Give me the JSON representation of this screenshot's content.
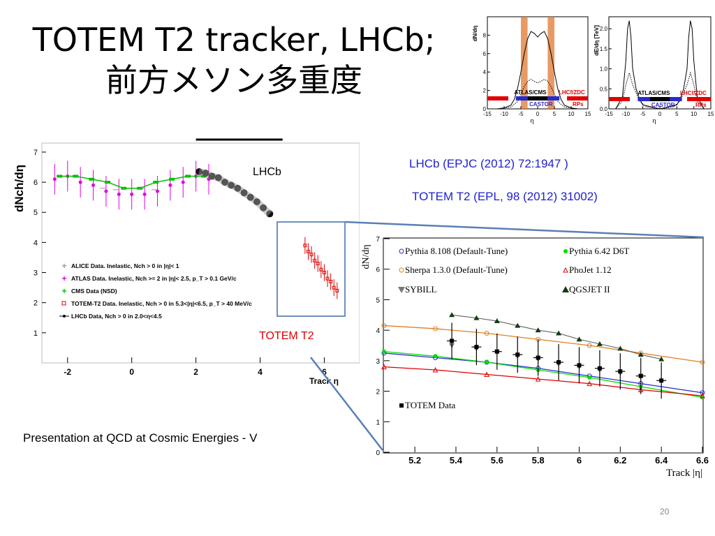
{
  "slide": {
    "title_line1": "TOTEM T2 tracker, LHCb;",
    "title_line2": "前方メソン多重度",
    "ref_lhcb": "LHCb (EPJC (2012) 72:1947 )",
    "ref_totem": "TOTEM T2 (EPL, 98 (2012) 31002)",
    "label_lhcb": "LHCb",
    "label_totem": "TOTEM T2",
    "footer": "Presentation at QCD at Cosmic Energies - V",
    "page_number": "20",
    "colors": {
      "ref": "#1f1fcf",
      "totem_label": "#e00000",
      "zoom_box": "#6f8fbf"
    }
  },
  "chart_data": [
    {
      "id": "detector-coverage-dNdeta",
      "type": "line",
      "ylabel": "dN/dη",
      "xlabel": "η",
      "xlim": [
        -15,
        15
      ],
      "ylim": [
        0,
        10
      ],
      "xticks": [
        "-15",
        "-10",
        "-5",
        "0",
        "5",
        "10",
        "15"
      ],
      "yticks": [
        "0",
        "2",
        "4",
        "6",
        "8"
      ],
      "bands": [
        "ATLAS/CMS",
        "CASTOR",
        "LHCf/ZDC",
        "RPs"
      ],
      "band_colors": {
        "atlas_cms": "#000000",
        "castor": "#2a2ad0",
        "lhcf_rps": "#e00000"
      },
      "highlight_eta_ranges": [
        [
          -5,
          -3
        ],
        [
          3,
          5
        ]
      ],
      "solid": {
        "x": [
          -12,
          -10,
          -8,
          -7,
          -6,
          -5,
          -4,
          -3,
          -2,
          -1,
          0,
          1,
          2,
          3,
          4,
          5,
          6,
          7,
          8,
          10,
          12
        ],
        "y": [
          0,
          0.1,
          0.4,
          1.0,
          2.2,
          4.0,
          6.0,
          7.6,
          8.4,
          8.2,
          7.8,
          8.2,
          8.4,
          7.6,
          6.0,
          4.0,
          2.2,
          1.0,
          0.4,
          0.1,
          0
        ]
      },
      "dotted": {
        "x": [
          -12,
          -8,
          -6,
          -5,
          -4,
          -3,
          -2,
          -1,
          0,
          1,
          2,
          3,
          4,
          5,
          6,
          8,
          12
        ],
        "y": [
          0,
          0.2,
          0.8,
          1.6,
          2.4,
          3.0,
          3.2,
          3.0,
          2.8,
          3.0,
          3.2,
          3.0,
          2.4,
          1.6,
          0.8,
          0.2,
          0
        ]
      }
    },
    {
      "id": "detector-coverage-dEdeta",
      "type": "line",
      "ylabel": "dE/dη [TeV]",
      "xlabel": "η",
      "xlim": [
        -15,
        15
      ],
      "ylim": [
        0,
        2.3
      ],
      "xticks": [
        "-15",
        "-10",
        "-5",
        "0",
        "5",
        "10",
        "15"
      ],
      "yticks": [
        "0.0",
        "0.5",
        "1.0",
        "1.5",
        "2.0"
      ],
      "bands": [
        "ATLAS/CMS",
        "CASTOR",
        "LHCf/ZDC",
        "RPs"
      ],
      "solid": {
        "x": [
          -13,
          -11,
          -10,
          -9.5,
          -9,
          -8.5,
          -8,
          -7,
          -6,
          -5,
          0,
          5,
          6,
          7,
          8,
          8.5,
          9,
          9.5,
          10,
          11,
          13
        ],
        "y": [
          0,
          0.3,
          1.2,
          2.0,
          2.2,
          1.8,
          1.0,
          0.5,
          0.25,
          0.1,
          0,
          0.1,
          0.25,
          0.5,
          1.0,
          1.8,
          2.2,
          2.0,
          1.2,
          0.3,
          0
        ]
      },
      "dotted": {
        "x": [
          -13,
          -11,
          -10,
          -9,
          -8,
          -6,
          -4,
          0,
          4,
          6,
          8,
          9,
          10,
          11,
          13
        ],
        "y": [
          0,
          0.2,
          0.6,
          0.9,
          0.6,
          0.2,
          0.05,
          0,
          0.05,
          0.2,
          0.6,
          0.9,
          0.6,
          0.2,
          0
        ]
      }
    },
    {
      "id": "multiplicity-overview",
      "type": "scatter",
      "ylabel": "dNch/dη",
      "xlabel": "Track η",
      "xlim": [
        -2.8,
        7.1
      ],
      "ylim": [
        0,
        7.3
      ],
      "xticks": [
        "-2",
        "0",
        "2",
        "4",
        "6"
      ],
      "yticks": [
        "1",
        "2",
        "3",
        "4",
        "5",
        "6",
        "7"
      ],
      "legend": [
        {
          "label": "ALICE Data. Inelastic, Nch > 0 in |η|< 1",
          "color": "#999999",
          "marker": "cross"
        },
        {
          "label": "ATLAS Data. Inelastic, Nch >= 2 in  |η|< 2.5, p_T > 0.1 GeV/c",
          "color": "#e000e0",
          "marker": "star"
        },
        {
          "label": "CMS Data (NSD)",
          "color": "#00c000",
          "marker": "cross"
        },
        {
          "label": "TOTEM-T2 Data. Inelastic, Nch > 0 in 5.3<|η|<6.5, p_T > 40 MeV/c",
          "color": "#e00000",
          "marker": "open-square"
        },
        {
          "label": "LHCb Data, Nch > 0 in 2.0<η<4.5",
          "color": "#000000",
          "marker": "dot"
        }
      ],
      "series": [
        {
          "name": "ATLAS Data",
          "x": [
            -2.4,
            -2.0,
            -1.6,
            -1.2,
            -0.8,
            -0.4,
            0.0,
            0.4,
            0.8,
            1.2,
            1.6,
            2.0,
            2.4
          ],
          "y": [
            6.1,
            6.2,
            6.0,
            5.9,
            5.7,
            5.6,
            5.6,
            5.6,
            5.7,
            5.9,
            6.0,
            6.2,
            6.1
          ]
        },
        {
          "name": "CMS Data (NSD)",
          "x": [
            -2.25,
            -1.75,
            -1.25,
            -0.75,
            -0.25,
            0.25,
            0.75,
            1.25,
            1.75,
            2.25
          ],
          "y": [
            6.2,
            6.2,
            6.1,
            6.0,
            5.8,
            5.8,
            6.0,
            6.1,
            6.2,
            6.2
          ]
        },
        {
          "name": "ALICE Data",
          "x": [
            -0.9,
            -0.5,
            -0.1,
            0.3,
            0.7
          ],
          "y": [
            5.8,
            5.75,
            5.8,
            5.8,
            5.75
          ]
        },
        {
          "name": "LHCb Data",
          "x": [
            2.1,
            2.3,
            2.5,
            2.7,
            2.9,
            3.1,
            3.3,
            3.5,
            3.7,
            3.9,
            4.1,
            4.3
          ],
          "y": [
            6.35,
            6.3,
            6.2,
            6.15,
            6.0,
            5.9,
            5.8,
            5.65,
            5.5,
            5.35,
            5.15,
            4.95
          ]
        },
        {
          "name": "TOTEM-T2 Data",
          "x": [
            5.4,
            5.5,
            5.6,
            5.7,
            5.8,
            5.9,
            6.0,
            6.1,
            6.2,
            6.3,
            6.4
          ],
          "y": [
            3.9,
            3.7,
            3.6,
            3.4,
            3.3,
            3.1,
            3.0,
            2.8,
            2.7,
            2.5,
            2.4
          ]
        }
      ]
    },
    {
      "id": "totem-t2-zoom",
      "type": "scatter",
      "ylabel": "dN/dη",
      "xlabel": "Track |η|",
      "xlim": [
        5.05,
        6.6
      ],
      "ylim": [
        0,
        7
      ],
      "xticks": [
        "5.2",
        "5.4",
        "5.6",
        "5.8",
        "6",
        "6.2",
        "6.4",
        "6.6"
      ],
      "yticks": [
        "0",
        "1",
        "2",
        "3",
        "4",
        "5",
        "6",
        "7"
      ],
      "series": [
        {
          "name": "Pythia 8.108 (Default-Tune)",
          "color": "#2a2ad0",
          "x": [
            5.05,
            5.3,
            5.55,
            5.8,
            6.05,
            6.3,
            6.6
          ],
          "y": [
            3.25,
            3.1,
            2.95,
            2.75,
            2.5,
            2.25,
            1.95
          ]
        },
        {
          "name": "Pythia 6.42 D6T",
          "color": "#00dd00",
          "x": [
            5.05,
            5.3,
            5.55,
            5.8,
            6.05,
            6.3,
            6.6
          ],
          "y": [
            3.3,
            3.15,
            2.95,
            2.7,
            2.45,
            2.15,
            1.8
          ]
        },
        {
          "name": "Sherpa 1.3.0 (Default-Tune)",
          "color": "#e08020",
          "x": [
            5.05,
            5.3,
            5.55,
            5.8,
            6.05,
            6.3,
            6.6
          ],
          "y": [
            4.15,
            4.05,
            3.9,
            3.7,
            3.5,
            3.25,
            2.95
          ]
        },
        {
          "name": "PhoJet 1.12",
          "color": "#e00000",
          "x": [
            5.05,
            5.3,
            5.55,
            5.8,
            6.05,
            6.3,
            6.6
          ],
          "y": [
            2.8,
            2.7,
            2.55,
            2.4,
            2.25,
            2.05,
            1.85
          ]
        },
        {
          "name": "SYBILL",
          "color": "#777777",
          "x": [
            5.38,
            5.5,
            5.6,
            5.7,
            5.8,
            5.9,
            6.0,
            6.1,
            6.2,
            6.3
          ],
          "y": [
            3.5,
            3.4,
            3.3,
            3.15,
            3.05,
            2.9,
            2.8,
            2.7,
            2.6,
            2.5
          ]
        },
        {
          "name": "QGSJET II",
          "color": "#000000",
          "x": [
            5.38,
            5.5,
            5.6,
            5.7,
            5.8,
            5.9,
            6.0,
            6.1,
            6.2,
            6.3,
            6.4
          ],
          "y": [
            4.5,
            4.4,
            4.3,
            4.15,
            4.0,
            3.9,
            3.7,
            3.55,
            3.4,
            3.2,
            3.05
          ]
        },
        {
          "name": "TOTEM Data",
          "color": "#000000",
          "x": [
            5.38,
            5.5,
            5.6,
            5.7,
            5.8,
            5.9,
            6.0,
            6.1,
            6.2,
            6.3,
            6.4
          ],
          "y": [
            3.65,
            3.45,
            3.3,
            3.2,
            3.1,
            2.95,
            2.85,
            2.75,
            2.65,
            2.5,
            2.35
          ]
        }
      ]
    }
  ]
}
